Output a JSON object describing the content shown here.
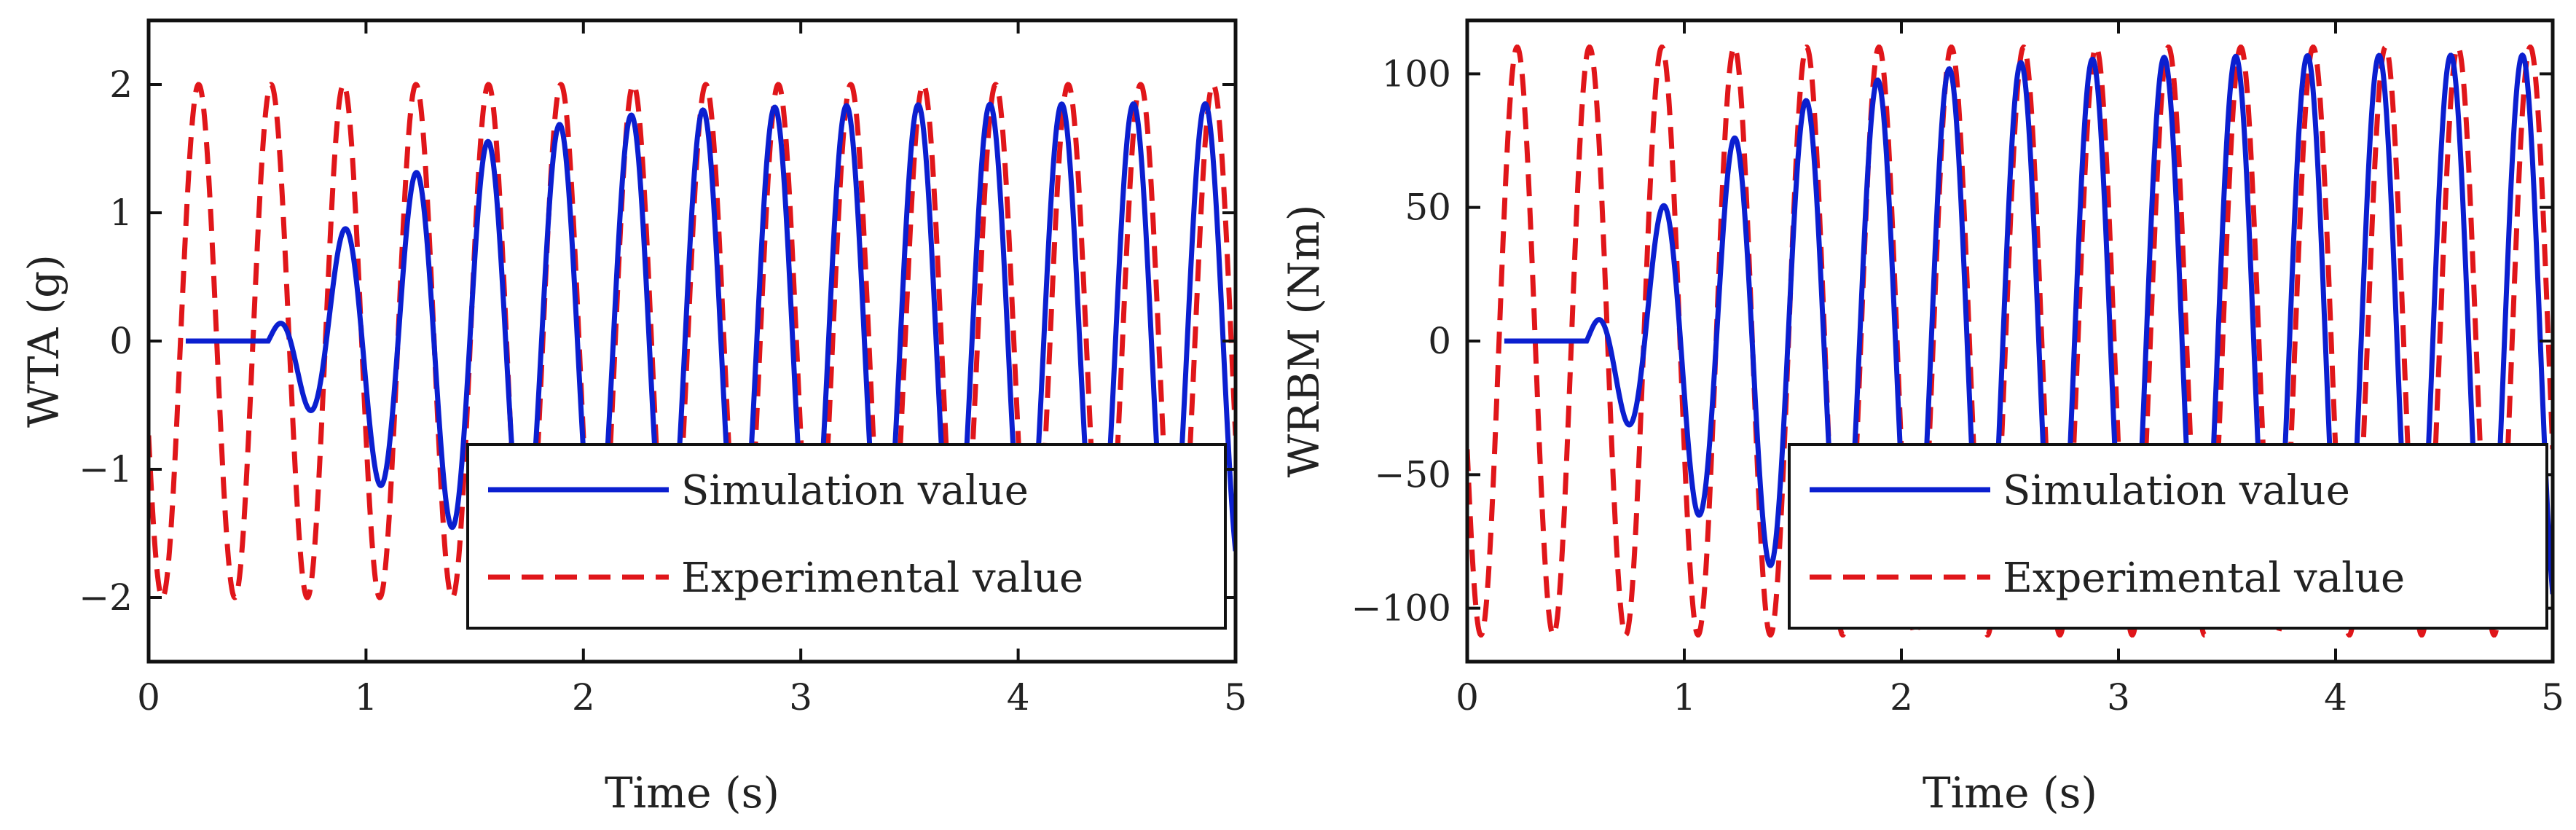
{
  "colors": {
    "simulation": "#0b1fd0",
    "experimental": "#e0161a",
    "axis": "#111111",
    "background": "#ffffff"
  },
  "chart_data": [
    {
      "type": "line",
      "xlabel": "Time (s)",
      "ylabel": "WTA (g)",
      "xlim": [
        0,
        5
      ],
      "ylim": [
        -2.5,
        2.5
      ],
      "xticks": [
        0,
        1,
        2,
        3,
        4,
        5
      ],
      "xtick_labels": [
        "0",
        "1",
        "2",
        "3",
        "4",
        "5"
      ],
      "yticks": [
        2,
        1,
        0,
        -1,
        -2
      ],
      "ytick_labels": [
        "2",
        "1",
        "0",
        "−1",
        "−2"
      ],
      "legend": {
        "location": "bottom-right",
        "entries": [
          "Simulation value",
          "Experimental value"
        ]
      },
      "series": [
        {
          "name": "Simulation value",
          "style": "solid",
          "model": "growing sine",
          "frequency_hz": 3.03,
          "phase_peak_time_s": 0.9,
          "start_time_s": 0.55,
          "final_amplitude": 1.85,
          "approx_peaks": [
            {
              "t": 0.63,
              "y": 0.28
            },
            {
              "t": 0.75,
              "y": -0.57
            },
            {
              "t": 0.9,
              "y": 0.9
            },
            {
              "t": 1.07,
              "y": -1.17
            },
            {
              "t": 1.23,
              "y": 1.37
            },
            {
              "t": 1.4,
              "y": -1.5
            },
            {
              "t": 1.57,
              "y": 1.57
            },
            {
              "t": 1.9,
              "y": 1.72
            },
            {
              "t": 2.23,
              "y": 1.8
            },
            {
              "t": 4.9,
              "y": 1.85
            }
          ]
        },
        {
          "name": "Experimental value",
          "style": "dashed",
          "model": "steady sine",
          "frequency_hz": 3.0,
          "phase_peak_time_s": 0.23,
          "amplitude": 2.0,
          "approx_peaks": [
            {
              "t": 0.23,
              "y": 2.1
            },
            {
              "t": 0.57,
              "y": 1.9
            },
            {
              "t": 0.9,
              "y": 1.88
            },
            {
              "t": 1.24,
              "y": 1.95
            },
            {
              "t": 1.57,
              "y": 2.05
            },
            {
              "t": 4.9,
              "y": 2.1
            }
          ]
        }
      ]
    },
    {
      "type": "line",
      "xlabel": "Time (s)",
      "ylabel": "WRBM (Nm)",
      "xlim": [
        0,
        5
      ],
      "ylim": [
        -120,
        120
      ],
      "xticks": [
        0,
        1,
        2,
        3,
        4,
        5
      ],
      "xtick_labels": [
        "0",
        "1",
        "2",
        "3",
        "4",
        "5"
      ],
      "yticks": [
        100,
        50,
        0,
        -50,
        -100
      ],
      "ytick_labels": [
        "100",
        "50",
        "0",
        "−50",
        "−100"
      ],
      "legend": {
        "location": "bottom-right",
        "entries": [
          "Simulation value",
          "Experimental value"
        ]
      },
      "series": [
        {
          "name": "Simulation value",
          "style": "solid",
          "model": "growing sine",
          "frequency_hz": 3.03,
          "phase_peak_time_s": 0.9,
          "start_time_s": 0.55,
          "final_amplitude": 107,
          "approx_peaks": [
            {
              "t": 0.72,
              "y": -27
            },
            {
              "t": 0.9,
              "y": 47
            },
            {
              "t": 1.07,
              "y": -65
            },
            {
              "t": 1.23,
              "y": 75
            },
            {
              "t": 1.4,
              "y": -85
            },
            {
              "t": 1.57,
              "y": 90
            },
            {
              "t": 1.9,
              "y": 97
            },
            {
              "t": 2.23,
              "y": 102
            },
            {
              "t": 4.9,
              "y": 108
            }
          ]
        },
        {
          "name": "Experimental value",
          "style": "dashed",
          "model": "steady sine",
          "frequency_hz": 3.0,
          "phase_peak_time_s": 0.23,
          "amplitude": 110,
          "approx_peaks": [
            {
              "t": 0.23,
              "y": 108
            },
            {
              "t": 0.57,
              "y": 113
            },
            {
              "t": 0.9,
              "y": 108
            },
            {
              "t": 1.24,
              "y": 105
            },
            {
              "t": 1.57,
              "y": 114
            },
            {
              "t": 3.57,
              "y": 120
            },
            {
              "t": 4.9,
              "y": 113
            }
          ]
        }
      ]
    }
  ]
}
